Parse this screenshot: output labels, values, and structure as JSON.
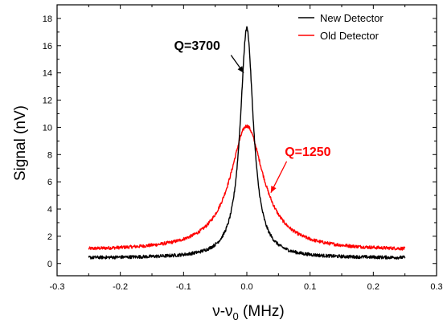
{
  "chart_data": {
    "type": "line",
    "title": "",
    "xlabel_parts": {
      "base": "ν-ν",
      "sub": "0",
      "unit": " (MHz)"
    },
    "ylabel": "Signal (nV)",
    "xlim": [
      -0.3,
      0.3
    ],
    "ylim": [
      -0.9,
      19
    ],
    "x_ticks": [
      -0.3,
      -0.2,
      -0.1,
      0.0,
      0.1,
      0.2,
      0.3
    ],
    "x_tick_labels": [
      "-0.3",
      "-0.2",
      "-0.1",
      "0.0",
      "0.1",
      "0.2",
      "0.3"
    ],
    "y_ticks": [
      0,
      2,
      4,
      6,
      8,
      10,
      12,
      14,
      16,
      18
    ],
    "y_tick_labels": [
      "0",
      "2",
      "4",
      "6",
      "8",
      "10",
      "12",
      "14",
      "16",
      "18"
    ],
    "grid": false,
    "legend_position": "top-right",
    "series": [
      {
        "name": "New Detector",
        "color": "#000000",
        "shape": "lorentzian",
        "center": 0.0,
        "peak": 17.3,
        "baseline": 0.4,
        "half_width": 0.0125,
        "x_range": [
          -0.25,
          0.25
        ],
        "noise": 0.12
      },
      {
        "name": "Old Detector",
        "color": "#ff0000",
        "shape": "lorentzian",
        "center": 0.0,
        "peak": 10.1,
        "baseline": 0.95,
        "half_width": 0.032,
        "x_range": [
          -0.25,
          0.25
        ],
        "noise": 0.12
      }
    ],
    "annotations": [
      {
        "text": "Q=3700",
        "color": "#000000",
        "text_x": -0.115,
        "text_y": 15.7,
        "arrow_from": [
          -0.025,
          15.3
        ],
        "arrow_to": [
          -0.005,
          14.0
        ]
      },
      {
        "text": "Q=1250",
        "color": "#ff0000",
        "text_x": 0.06,
        "text_y": 7.9,
        "arrow_from": [
          0.063,
          7.5
        ],
        "arrow_to": [
          0.038,
          5.2
        ]
      }
    ]
  }
}
